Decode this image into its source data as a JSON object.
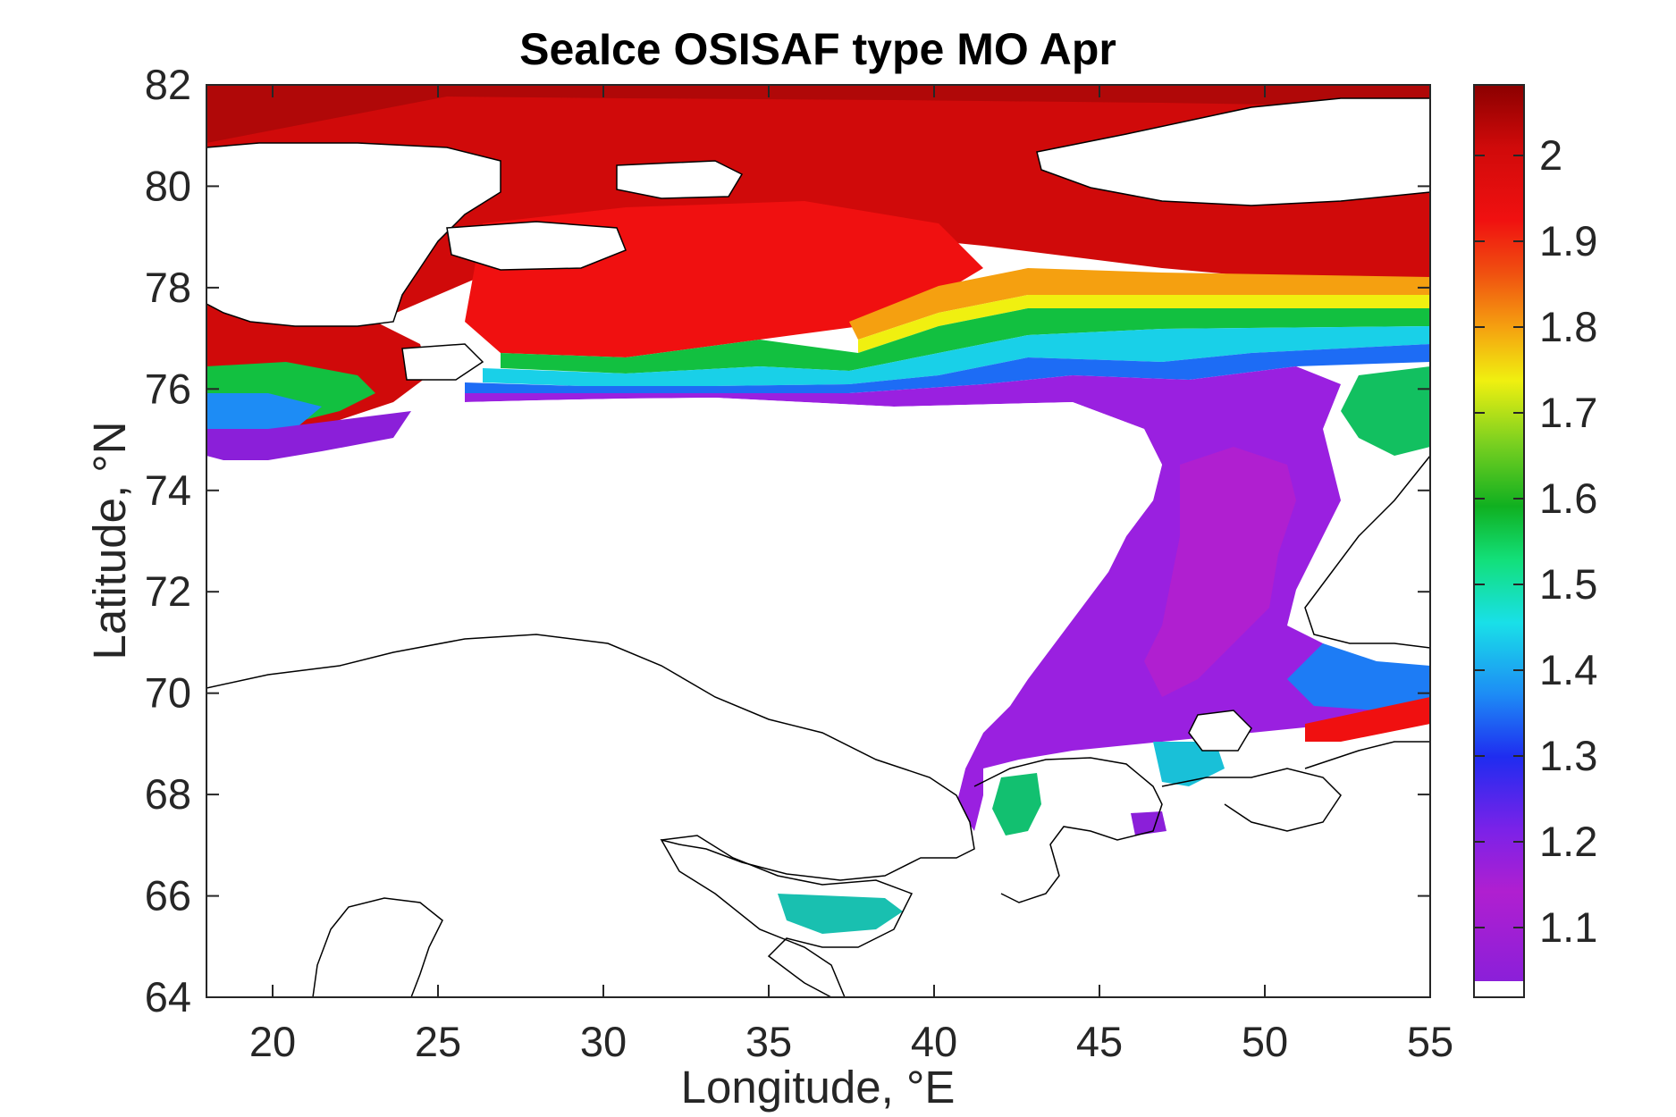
{
  "chart_data": {
    "type": "heatmap",
    "title": "SeaIce OSISAF type MO Apr",
    "xlabel": "Longitude, °E",
    "ylabel": "Latitude, °N",
    "xlim": [
      18,
      55
    ],
    "ylim": [
      64,
      82
    ],
    "x_ticks": [
      "20",
      "25",
      "30",
      "35",
      "40",
      "45",
      "50",
      "55"
    ],
    "x_tick_values": [
      20,
      25,
      30,
      35,
      40,
      45,
      50,
      55
    ],
    "y_ticks": [
      "64",
      "66",
      "68",
      "70",
      "72",
      "74",
      "76",
      "78",
      "80",
      "82"
    ],
    "y_tick_values": [
      64,
      66,
      68,
      70,
      72,
      74,
      76,
      78,
      80,
      82
    ],
    "colorbar": {
      "ticks": [
        "1.1",
        "1.2",
        "1.3",
        "1.4",
        "1.5",
        "1.6",
        "1.7",
        "1.8",
        "1.9",
        "2"
      ],
      "tick_values": [
        1.1,
        1.2,
        1.3,
        1.4,
        1.5,
        1.6,
        1.7,
        1.8,
        1.9,
        2.0
      ],
      "range": [
        1.02,
        2.08
      ],
      "colormap": [
        "#8b1fd9",
        "#b01fd0",
        "#7a22e8",
        "#1f2cf0",
        "#1d8cf5",
        "#19e0e8",
        "#12e07a",
        "#10b020",
        "#7ad020",
        "#f0f010",
        "#f5a010",
        "#f05010",
        "#f01010",
        "#d00a0a",
        "#8b0000"
      ],
      "bottom_bin_color": "#ffffff"
    },
    "grid": false
  }
}
